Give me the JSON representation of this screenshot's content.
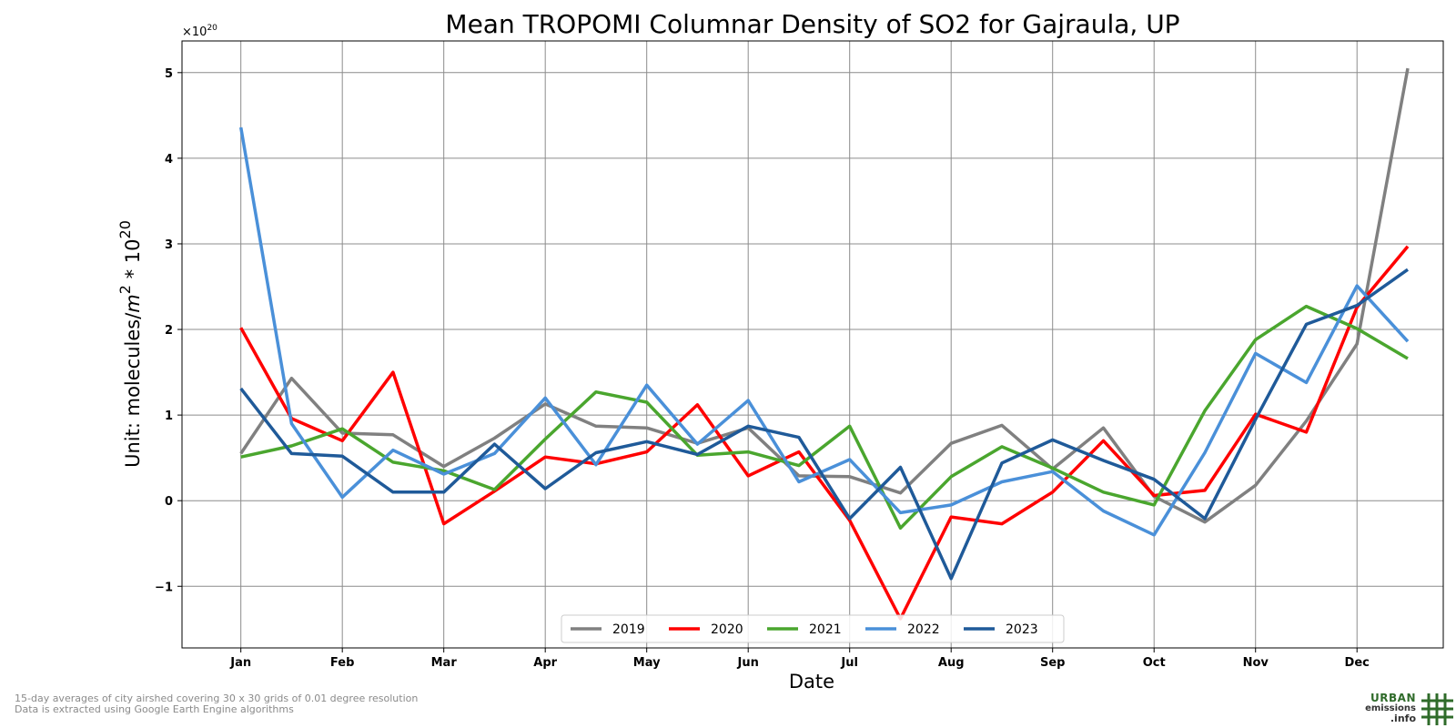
{
  "chart_data": {
    "type": "line",
    "title": "Mean TROPOMI Columnar Density of SO2 for Gajraula, UP",
    "xlabel": "Date",
    "ylabel": "Unit: molecules/m² * 10²⁰",
    "ylabel_parts": {
      "prefix": "Unit: molecules/",
      "italic": "m",
      "sup1": "2",
      "mid": " * 10",
      "sup2": "20"
    },
    "offset_label": {
      "base": "×10",
      "exp": "20"
    },
    "x_ticks": [
      "Jan",
      "Feb",
      "Mar",
      "Apr",
      "May",
      "Jun",
      "Jul",
      "Aug",
      "Sep",
      "Oct",
      "Nov",
      "Dec"
    ],
    "y_ticks": [
      "−1",
      "0",
      "1",
      "2",
      "3",
      "4",
      "5"
    ],
    "y_tick_values": [
      -1,
      0,
      1,
      2,
      3,
      4,
      5
    ],
    "xlim": [
      -0.58,
      11.85
    ],
    "ylim": [
      -1.72,
      5.37
    ],
    "grid": true,
    "legend_position": "lower center",
    "x": [
      0,
      0.5,
      1,
      1.5,
      2,
      2.5,
      3,
      3.5,
      4,
      4.5,
      5,
      5.5,
      6,
      6.5,
      7,
      7.5,
      8,
      8.5,
      9,
      9.5,
      10,
      10.5,
      11,
      11.5
    ],
    "series": [
      {
        "name": "2019",
        "color": "#808080",
        "values": [
          0.55,
          1.43,
          0.79,
          0.77,
          0.4,
          0.73,
          1.13,
          0.87,
          0.85,
          0.67,
          0.85,
          0.29,
          0.28,
          0.09,
          0.67,
          0.88,
          0.37,
          0.85,
          0.05,
          -0.25,
          0.18,
          0.93,
          1.83,
          5.05
        ]
      },
      {
        "name": "2020",
        "color": "#ff0000",
        "values": [
          2.02,
          0.96,
          0.7,
          1.5,
          -0.27,
          0.11,
          0.51,
          0.43,
          0.57,
          1.12,
          0.29,
          0.57,
          -0.23,
          -1.38,
          -0.19,
          -0.27,
          0.1,
          0.7,
          0.06,
          0.12,
          1.01,
          0.8,
          2.26,
          2.97
        ]
      },
      {
        "name": "2021",
        "color": "#4aa62e",
        "values": [
          0.51,
          0.64,
          0.84,
          0.45,
          0.35,
          0.13,
          0.72,
          1.27,
          1.15,
          0.53,
          0.57,
          0.41,
          0.87,
          -0.32,
          0.28,
          0.63,
          0.38,
          0.1,
          -0.05,
          1.05,
          1.88,
          2.27,
          2.01,
          1.66
        ]
      },
      {
        "name": "2022",
        "color": "#4a90d9",
        "values": [
          4.36,
          0.9,
          0.04,
          0.59,
          0.31,
          0.55,
          1.2,
          0.42,
          1.35,
          0.66,
          1.17,
          0.22,
          0.48,
          -0.14,
          -0.05,
          0.22,
          0.34,
          -0.12,
          -0.4,
          0.56,
          1.72,
          1.38,
          2.51,
          1.86
        ]
      },
      {
        "name": "2023",
        "color": "#1f5a99",
        "values": [
          1.31,
          0.55,
          0.52,
          0.1,
          0.1,
          0.66,
          0.14,
          0.56,
          0.69,
          0.54,
          0.87,
          0.74,
          -0.21,
          0.39,
          -0.91,
          0.44,
          0.71,
          0.47,
          0.25,
          -0.21,
          0.95,
          2.06,
          2.28,
          2.7
        ]
      }
    ]
  },
  "footnote": {
    "line1": "15-day averages of city airshed covering 30 x 30 grids of 0.01 degree resolution",
    "line2": "Data is extracted using Google Earth Engine algorithms"
  },
  "logo": {
    "line1": "URBAN",
    "line2": "emissions",
    "line3": ".info",
    "icon": "grid-hash-icon",
    "color": "#2f6b2a"
  }
}
